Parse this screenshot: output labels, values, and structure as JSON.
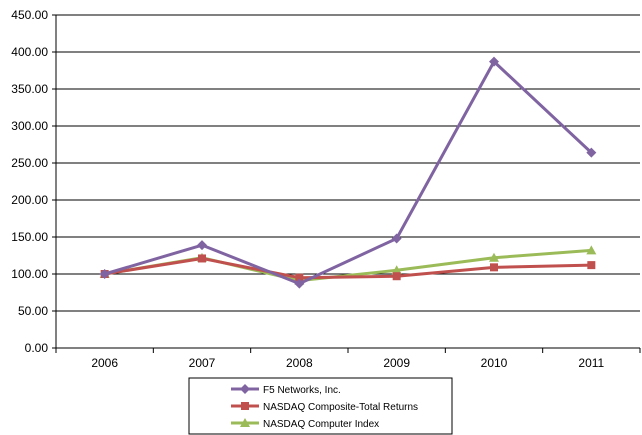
{
  "chart_data": {
    "type": "line",
    "title": "",
    "xlabel": "",
    "ylabel": "",
    "categories": [
      "2006",
      "2007",
      "2008",
      "2009",
      "2010",
      "2011"
    ],
    "ylim": [
      0,
      450
    ],
    "y_ticks": [
      "0.00",
      "50.00",
      "100.00",
      "150.00",
      "200.00",
      "250.00",
      "300.00",
      "350.00",
      "400.00",
      "450.00"
    ],
    "grid": "horizontal",
    "legend_position": "bottom",
    "series": [
      {
        "name": "F5 Networks, Inc.",
        "color": "#8064a2",
        "marker": "diamond",
        "values": [
          100,
          139,
          87,
          148,
          387,
          264
        ]
      },
      {
        "name": "NASDAQ Composite-Total Returns",
        "color": "#c0504d",
        "marker": "square",
        "values": [
          100,
          121,
          95,
          97,
          109,
          112
        ]
      },
      {
        "name": "NASDAQ Computer Index",
        "color": "#9bbb59",
        "marker": "triangle",
        "values": [
          100,
          122,
          91,
          105,
          122,
          132
        ]
      }
    ]
  }
}
